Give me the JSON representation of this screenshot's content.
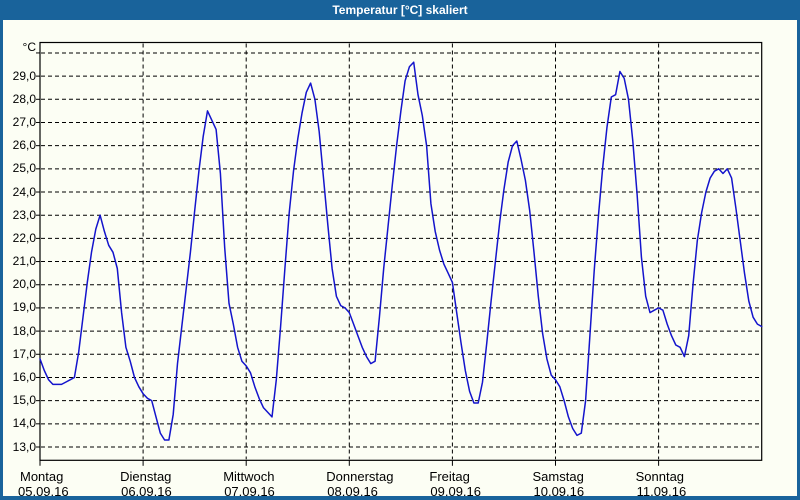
{
  "window": {
    "title": "Temperatur [°C] skaliert"
  },
  "chart_data": {
    "type": "line",
    "title": "Temperatur [°C] skaliert",
    "xlabel": "",
    "ylabel": "°C",
    "series_name": "Temperatur",
    "ylim": [
      12.4,
      30.4
    ],
    "grid": {
      "y_min": 13,
      "y_max": 30,
      "y_step": 1,
      "x_days": 7,
      "top_gridline_unlabeled": 30
    },
    "legend": "none",
    "y_tick_labels": [
      "13,0",
      "14,0",
      "15,0",
      "16,0",
      "17,0",
      "18,0",
      "19,0",
      "20,0",
      "21,0",
      "22,0",
      "23,0",
      "24,0",
      "25,0",
      "26,0",
      "27,0",
      "28,0",
      "29,0"
    ],
    "days": [
      {
        "weekday": "Montag",
        "date": "05.09.16"
      },
      {
        "weekday": "Dienstag",
        "date": "06.09.16"
      },
      {
        "weekday": "Mittwoch",
        "date": "07.09.16"
      },
      {
        "weekday": "Donnerstag",
        "date": "08.09.16"
      },
      {
        "weekday": "Freitag",
        "date": "09.09.16"
      },
      {
        "weekday": "Samstag",
        "date": "10.09.16"
      },
      {
        "weekday": "Sonntag",
        "date": "11.09.16"
      }
    ],
    "x_resolution_hours": 1,
    "values_hourly": [
      16.8,
      16.3,
      15.9,
      15.7,
      15.7,
      15.7,
      15.8,
      15.9,
      16.0,
      17.1,
      18.6,
      20.1,
      21.4,
      22.4,
      23.0,
      22.3,
      21.7,
      21.4,
      20.7,
      18.8,
      17.3,
      16.7,
      16.0,
      15.6,
      15.3,
      15.1,
      15.0,
      14.3,
      13.6,
      13.3,
      13.3,
      14.4,
      16.6,
      18.2,
      19.8,
      21.4,
      23.2,
      24.9,
      26.4,
      27.5,
      27.1,
      26.7,
      24.8,
      21.6,
      19.2,
      18.3,
      17.3,
      16.7,
      16.5,
      16.2,
      15.6,
      15.1,
      14.7,
      14.5,
      14.3,
      15.9,
      18.2,
      20.7,
      23.1,
      24.9,
      26.3,
      27.4,
      28.3,
      28.7,
      28.0,
      26.6,
      24.6,
      22.6,
      20.7,
      19.5,
      19.1,
      19.0,
      18.8,
      18.3,
      17.8,
      17.3,
      16.9,
      16.6,
      16.7,
      18.6,
      20.7,
      22.5,
      24.3,
      26.0,
      27.5,
      28.8,
      29.4,
      29.6,
      28.2,
      27.3,
      26.0,
      23.5,
      22.3,
      21.5,
      20.9,
      20.5,
      20.1,
      18.8,
      17.5,
      16.3,
      15.4,
      14.9,
      14.9,
      15.8,
      17.5,
      19.3,
      21.0,
      22.7,
      24.1,
      25.3,
      26.0,
      26.2,
      25.4,
      24.5,
      23.2,
      21.4,
      19.5,
      17.9,
      16.8,
      16.1,
      15.9,
      15.6,
      15.0,
      14.3,
      13.8,
      13.5,
      13.6,
      15.0,
      17.8,
      20.6,
      23.0,
      25.1,
      26.8,
      28.1,
      28.2,
      29.2,
      28.9,
      28.0,
      26.2,
      23.9,
      21.2,
      19.5,
      18.8,
      18.9,
      19.0,
      18.9,
      18.3,
      17.8,
      17.4,
      17.3,
      16.9,
      17.8,
      20.0,
      21.9,
      23.1,
      24.0,
      24.6,
      24.9,
      25.0,
      24.8,
      25.0,
      24.6,
      23.3,
      21.9,
      20.5,
      19.3,
      18.6,
      18.3,
      18.2
    ],
    "colors": {
      "titlebar": "#19639b",
      "window_frame": "#19639b",
      "plot_background": "#fcfef4",
      "plot_line": "#1414cc",
      "grid": "#000000",
      "title_text": "#ffffff"
    }
  }
}
